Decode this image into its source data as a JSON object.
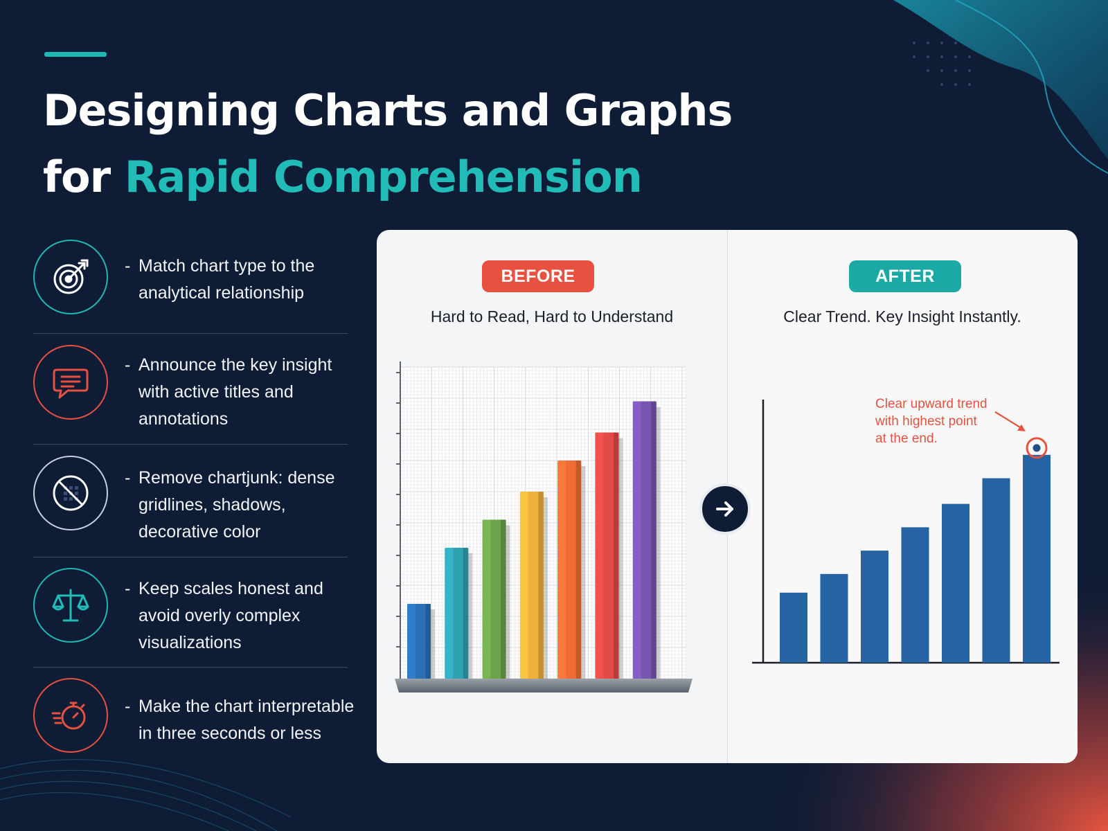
{
  "title": {
    "line1": "Designing Charts and Graphs",
    "line2_prefix": "for ",
    "line2_accent": "Rapid Comprehension"
  },
  "colors": {
    "background": "#0f1c35",
    "teal": "#20b8b4",
    "coral": "#e8503f",
    "bar_blue": "#2563a3"
  },
  "tips": [
    {
      "icon": "target-arrow-icon",
      "lines": [
        "Match chart type to the",
        "analytical relationship"
      ]
    },
    {
      "icon": "speech-bubble-icon",
      "lines": [
        "Announce the key insight",
        "with active titles and",
        "annotations"
      ]
    },
    {
      "icon": "no-grid-icon",
      "lines": [
        "Remove chartjunk: dense",
        "gridlines, shadows,",
        "decorative color"
      ]
    },
    {
      "icon": "balance-scale-icon",
      "lines": [
        "Keep scales honest and",
        "avoid overly complex",
        "visualizations"
      ]
    },
    {
      "icon": "stopwatch-icon",
      "lines": [
        "Make the chart interpretable",
        "in three seconds or less"
      ]
    }
  ],
  "comparison": {
    "before": {
      "badge": "BEFORE",
      "subtitle": "Hard to Read, Hard to Understand"
    },
    "after": {
      "badge": "AFTER",
      "subtitle": "Clear Trend. Key Insight Instantly.",
      "annotation": [
        "Clear upward trend",
        "with highest point",
        "at the end."
      ]
    },
    "arrow_icon": "right-arrow-icon"
  },
  "chart_data": [
    {
      "type": "bar",
      "style": "3d",
      "grid": true,
      "ylim": [
        0,
        10
      ],
      "values": [
        2.4,
        4.2,
        5.1,
        6.0,
        7.0,
        7.9,
        8.9
      ],
      "colors": [
        "#2c6fb5",
        "#2fa1b3",
        "#6ba24a",
        "#f0b03a",
        "#f26b35",
        "#e14a46",
        "#7755b1"
      ]
    },
    {
      "type": "bar",
      "grid": false,
      "ylim": [
        0,
        10
      ],
      "values": [
        3.0,
        3.8,
        4.8,
        5.8,
        6.8,
        7.9,
        8.9
      ],
      "highlight_last": true
    }
  ]
}
